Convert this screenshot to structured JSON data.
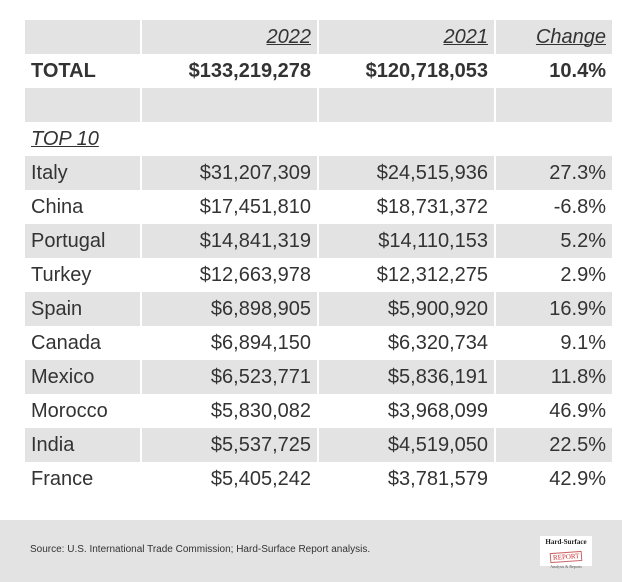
{
  "chart_data": {
    "type": "table",
    "columns": [
      "",
      "2022",
      "2021",
      "Change"
    ],
    "total": {
      "label": "TOTAL",
      "y2022": "$133,219,278",
      "y2021": "$120,718,053",
      "change": "10.4%"
    },
    "section_label": "TOP 10",
    "rows": [
      {
        "country": "Italy",
        "y2022": "$31,207,309",
        "y2021": "$24,515,936",
        "change": "27.3%"
      },
      {
        "country": "China",
        "y2022": "$17,451,810",
        "y2021": "$18,731,372",
        "change": "-6.8%"
      },
      {
        "country": "Portugal",
        "y2022": "$14,841,319",
        "y2021": "$14,110,153",
        "change": "5.2%"
      },
      {
        "country": "Turkey",
        "y2022": "$12,663,978",
        "y2021": "$12,312,275",
        "change": "2.9%"
      },
      {
        "country": "Spain",
        "y2022": "$6,898,905",
        "y2021": "$5,900,920",
        "change": "16.9%"
      },
      {
        "country": "Canada",
        "y2022": "$6,894,150",
        "y2021": "$6,320,734",
        "change": "9.1%"
      },
      {
        "country": "Mexico",
        "y2022": "$6,523,771",
        "y2021": "$5,836,191",
        "change": "11.8%"
      },
      {
        "country": "Morocco",
        "y2022": "$5,830,082",
        "y2021": "$3,968,099",
        "change": "46.9%"
      },
      {
        "country": "India",
        "y2022": "$5,537,725",
        "y2021": "$4,519,050",
        "change": "22.5%"
      },
      {
        "country": "France",
        "y2022": "$5,405,242",
        "y2021": "$3,781,579",
        "change": "42.9%"
      }
    ]
  },
  "footer": {
    "source": "Source: U.S. International Trade Commission; Hard-Surface Report analysis.",
    "logo_line1": "Hard-Surface",
    "logo_line2": "REPORT",
    "logo_line3": "Analysis & Reports"
  },
  "colors": {
    "stripe": "#e3e3e3",
    "text": "#333333"
  }
}
